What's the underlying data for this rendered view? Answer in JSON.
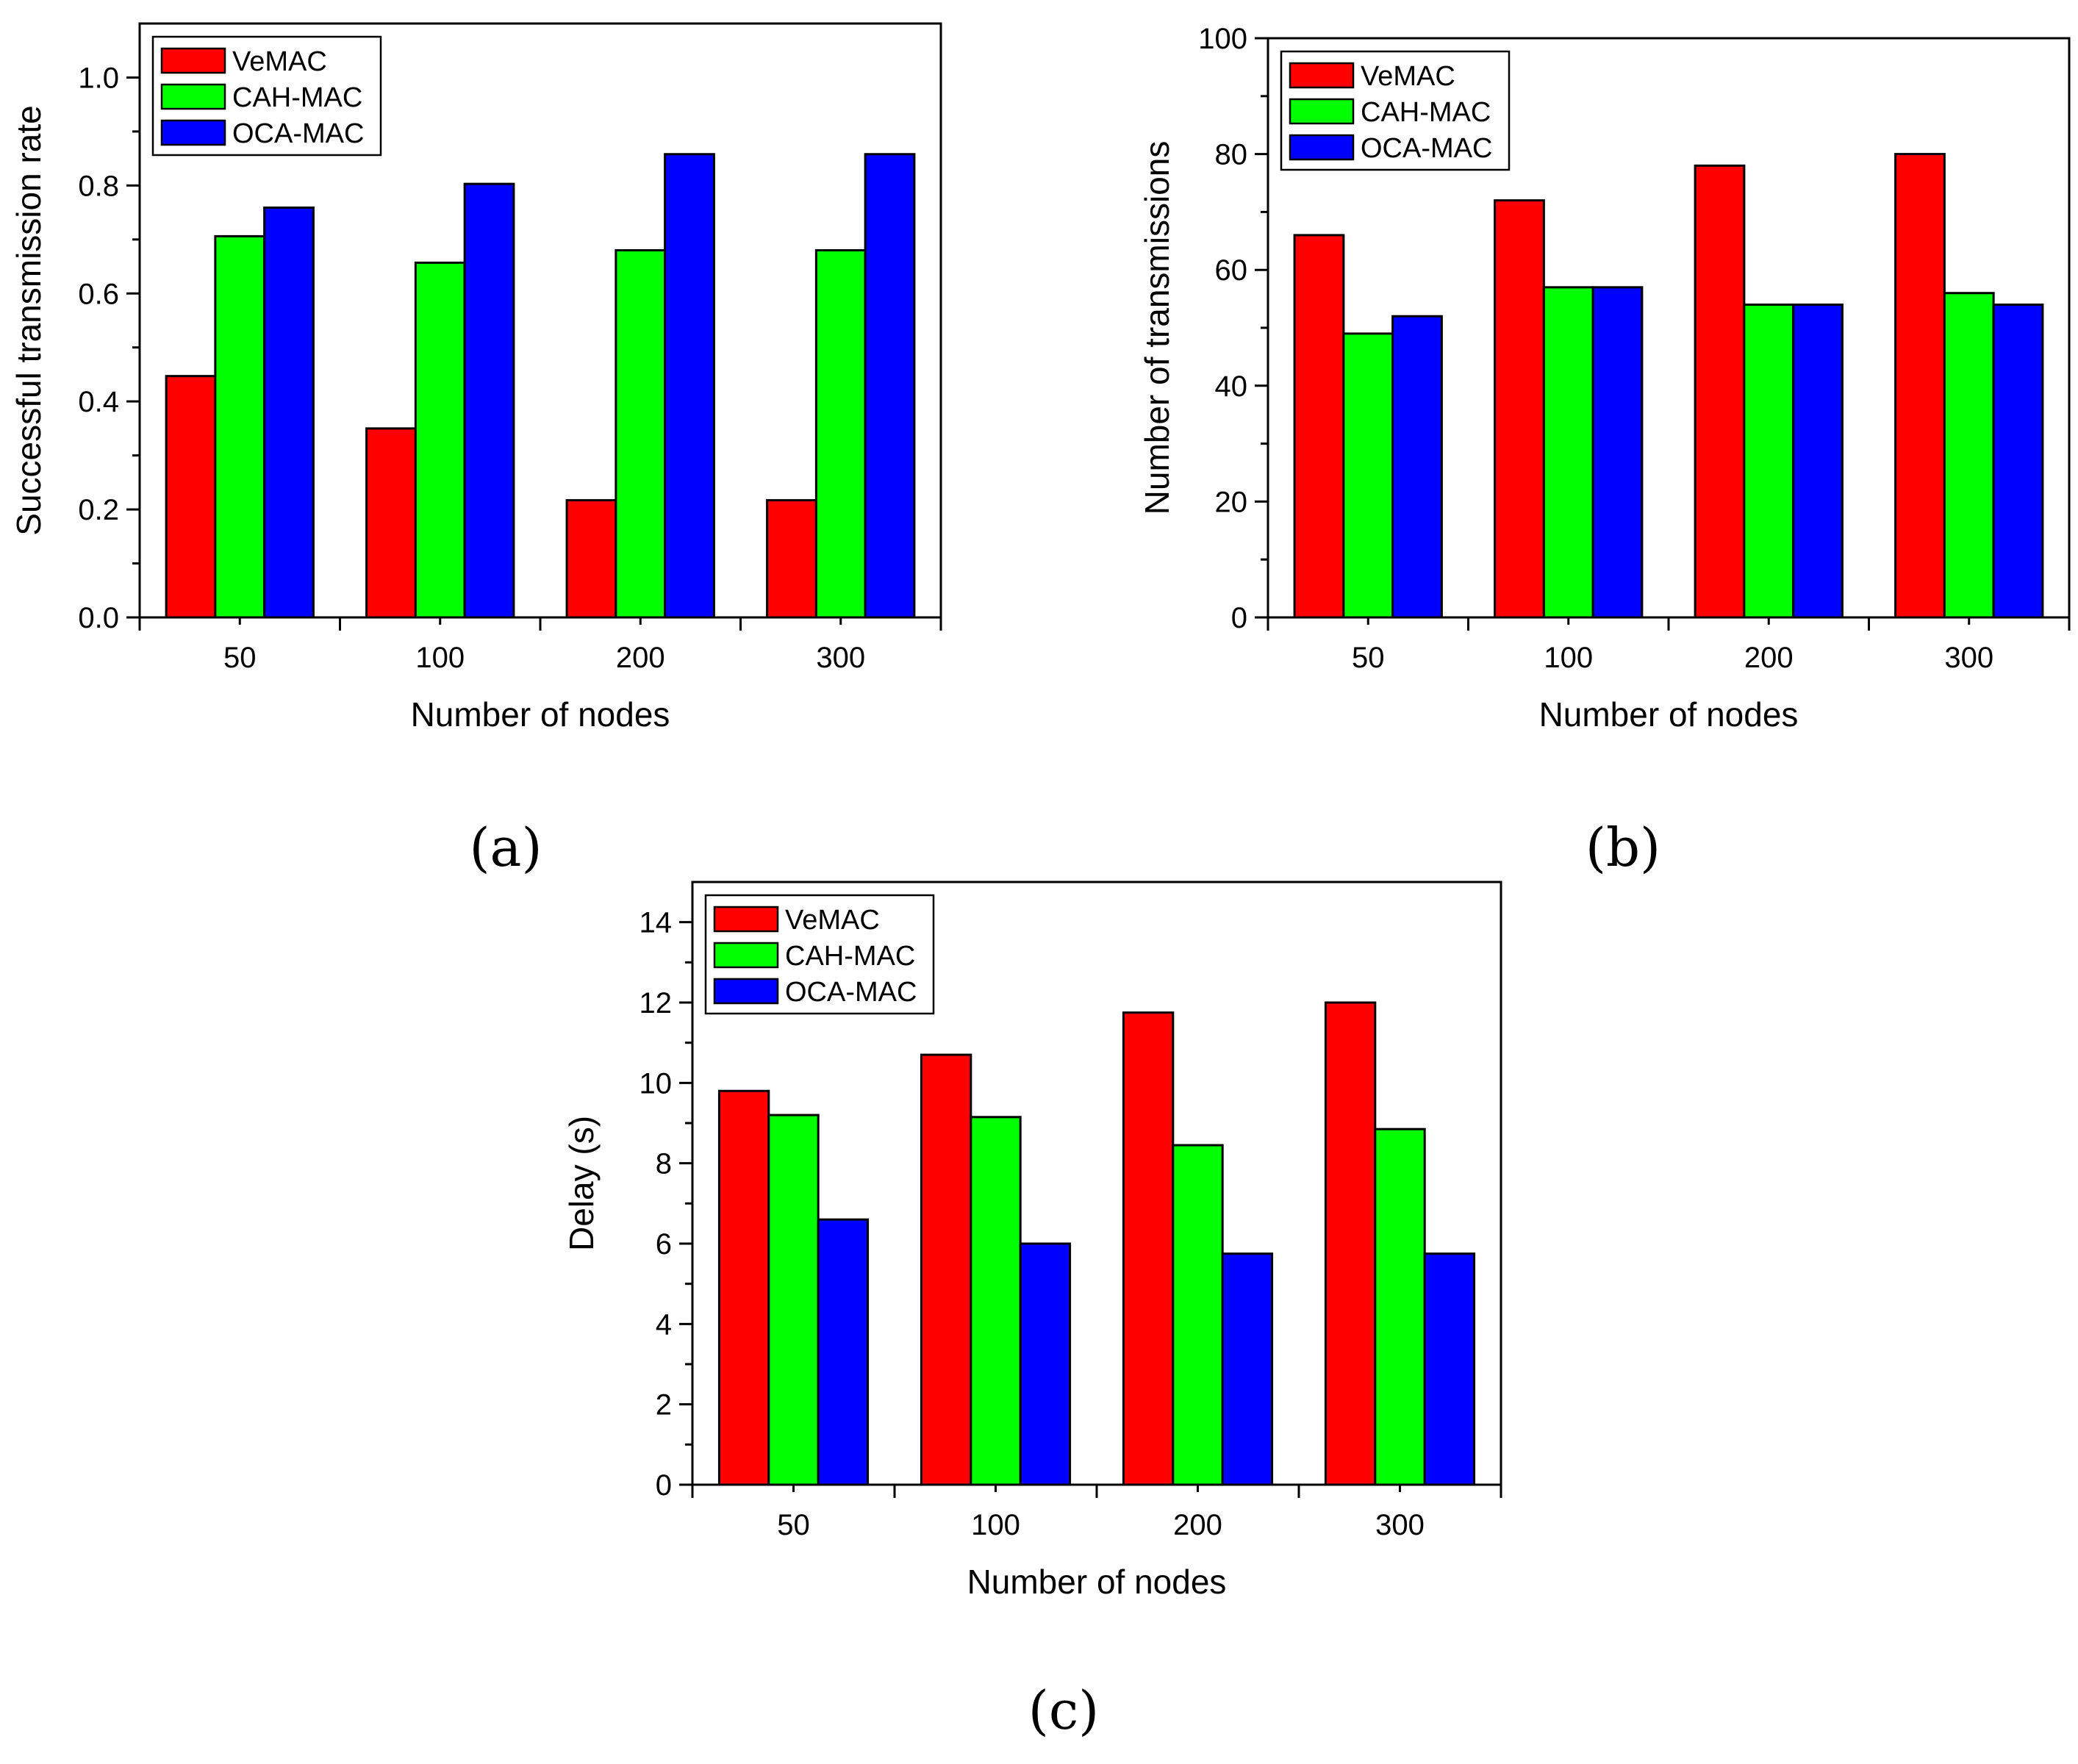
{
  "chart_data": [
    {
      "type": "bar",
      "panel_label": "(a)",
      "categories": [
        "50",
        "100",
        "200",
        "300"
      ],
      "series": [
        {
          "name": "VeMAC",
          "color": "#ff0000",
          "values": [
            0.447,
            0.35,
            0.217,
            0.217
          ]
        },
        {
          "name": "CAH-MAC",
          "color": "#00ff00",
          "values": [
            0.706,
            0.657,
            0.68,
            0.68
          ]
        },
        {
          "name": "OCA-MAC",
          "color": "#0000ff",
          "values": [
            0.759,
            0.803,
            0.858,
            0.858
          ]
        }
      ],
      "xlabel": "Number of nodes",
      "ylabel": "Successful transmission rate",
      "ylim": [
        0,
        1.1
      ],
      "yticks": [
        "0.0",
        "0.2",
        "0.4",
        "0.6",
        "0.8",
        "1.0"
      ],
      "legend": "top-left"
    },
    {
      "type": "bar",
      "panel_label": "(b)",
      "categories": [
        "50",
        "100",
        "200",
        "300"
      ],
      "series": [
        {
          "name": "VeMAC",
          "color": "#ff0000",
          "values": [
            66,
            72,
            78,
            80
          ]
        },
        {
          "name": "CAH-MAC",
          "color": "#00ff00",
          "values": [
            49,
            57,
            54,
            56
          ]
        },
        {
          "name": "OCA-MAC",
          "color": "#0000ff",
          "values": [
            52,
            57,
            54,
            54
          ]
        }
      ],
      "xlabel": "Number of nodes",
      "ylabel": "Number of transmissions",
      "ylim": [
        0,
        100
      ],
      "yticks": [
        "0",
        "20",
        "40",
        "60",
        "80",
        "100"
      ],
      "legend": "top-left"
    },
    {
      "type": "bar",
      "panel_label": "(c)",
      "categories": [
        "50",
        "100",
        "200",
        "300"
      ],
      "series": [
        {
          "name": "VeMAC",
          "color": "#ff0000",
          "values": [
            9.8,
            10.7,
            11.75,
            12.0
          ]
        },
        {
          "name": "CAH-MAC",
          "color": "#00ff00",
          "values": [
            9.2,
            9.15,
            8.45,
            8.85
          ]
        },
        {
          "name": "OCA-MAC",
          "color": "#0000ff",
          "values": [
            6.6,
            6.0,
            5.75,
            5.75
          ]
        }
      ],
      "xlabel": "Number of nodes",
      "ylabel": "Delay (s)",
      "ylim": [
        0,
        15
      ],
      "yticks": [
        "0",
        "2",
        "4",
        "6",
        "8",
        "10",
        "12",
        "14"
      ],
      "legend": "top-left"
    }
  ]
}
